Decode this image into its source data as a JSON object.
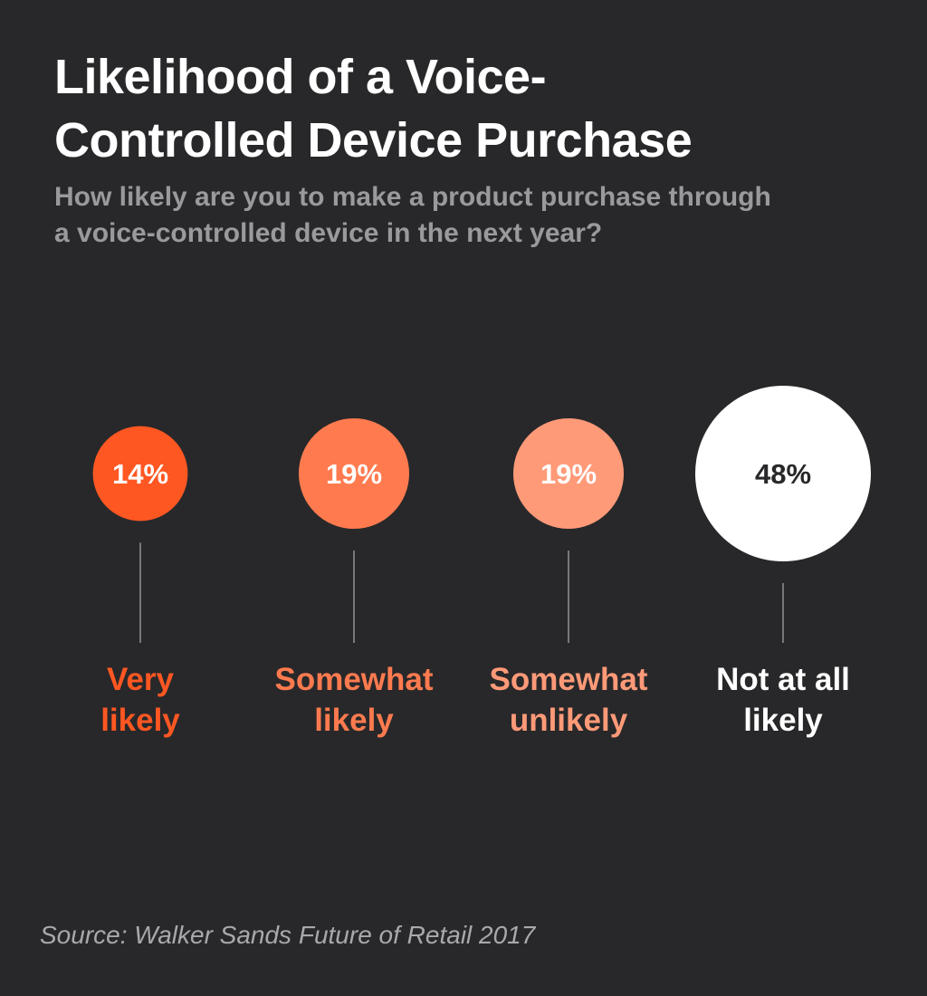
{
  "header": {
    "title_lines": [
      "Likelihood of a Voice-",
      "Controlled Device Purchase"
    ],
    "subtitle_lines": [
      "How likely are you to make a product purchase through",
      "a voice-controlled device in the next year?"
    ]
  },
  "chart_data": {
    "type": "bubble",
    "title": "Likelihood of a Voice-Controlled Device Purchase",
    "subtitle": "How likely are you to make a product purchase through a voice-controlled device in the next year?",
    "unit": "%",
    "categories": [
      "Very likely",
      "Somewhat likely",
      "Somewhat unlikely",
      "Not at all likely"
    ],
    "category_label_lines": [
      [
        "Very",
        "likely"
      ],
      [
        "Somewhat",
        "likely"
      ],
      [
        "Somewhat",
        "unlikely"
      ],
      [
        "Not at all",
        "likely"
      ]
    ],
    "values": [
      14,
      19,
      19,
      48
    ],
    "data_labels": [
      "14%",
      "19%",
      "19%",
      "48%"
    ],
    "colors": [
      "#ff5722",
      "#ff7b4f",
      "#ff9a78",
      "#ffffff"
    ],
    "value_label_colors": [
      "#ffffff",
      "#ffffff",
      "#ffffff",
      "#28282a"
    ],
    "category_label_colors": [
      "#ff5722",
      "#ff7b4f",
      "#ff9a78",
      "#ffffff"
    ],
    "connector_color": "#77777a",
    "legend": "none",
    "grid": false
  },
  "footer": {
    "source": "Source: Walker Sands Future of Retail 2017"
  }
}
